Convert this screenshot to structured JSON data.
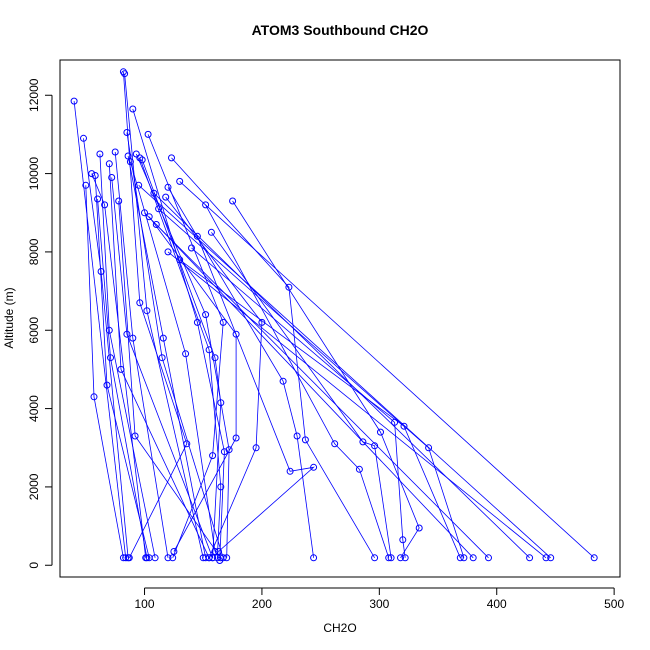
{
  "chart_data": {
    "type": "scatter",
    "title": "ATOM3 Southbound CH2O",
    "xlabel": "CH2O",
    "ylabel": "Altitude (m)",
    "xlim": [
      28,
      505
    ],
    "ylim": [
      -300,
      12900
    ],
    "xticks": [
      100,
      200,
      300,
      400,
      500
    ],
    "yticks": [
      0,
      2000,
      4000,
      6000,
      8000,
      10000,
      12000
    ],
    "grid": false,
    "color": "#0000ff",
    "profiles": [
      {
        "points": [
          {
            "x": 40,
            "y": 11850
          },
          {
            "x": 84,
            "y": 190
          }
        ]
      },
      {
        "points": [
          {
            "x": 48,
            "y": 10900
          },
          {
            "x": 63,
            "y": 7500
          },
          {
            "x": 86,
            "y": 190
          }
        ]
      },
      {
        "points": [
          {
            "x": 50,
            "y": 9700
          },
          {
            "x": 57,
            "y": 4300
          },
          {
            "x": 82,
            "y": 190
          }
        ]
      },
      {
        "points": [
          {
            "x": 55,
            "y": 10000
          },
          {
            "x": 66,
            "y": 9200
          },
          {
            "x": 101,
            "y": 190
          }
        ]
      },
      {
        "points": [
          {
            "x": 58,
            "y": 9950
          },
          {
            "x": 68,
            "y": 4600
          },
          {
            "x": 104,
            "y": 190
          }
        ]
      },
      {
        "points": [
          {
            "x": 60,
            "y": 9350
          },
          {
            "x": 71,
            "y": 5300
          },
          {
            "x": 102,
            "y": 190
          }
        ]
      },
      {
        "points": [
          {
            "x": 62,
            "y": 10500
          },
          {
            "x": 70,
            "y": 6000
          },
          {
            "x": 109,
            "y": 190
          }
        ]
      },
      {
        "points": [
          {
            "x": 70,
            "y": 10250
          },
          {
            "x": 80,
            "y": 5000
          },
          {
            "x": 155,
            "y": 190
          }
        ]
      },
      {
        "points": [
          {
            "x": 72,
            "y": 9900
          },
          {
            "x": 85,
            "y": 5900
          },
          {
            "x": 158,
            "y": 190
          }
        ]
      },
      {
        "points": [
          {
            "x": 75,
            "y": 10550
          },
          {
            "x": 90,
            "y": 5800
          },
          {
            "x": 120,
            "y": 190
          }
        ]
      },
      {
        "points": [
          {
            "x": 78,
            "y": 9300
          },
          {
            "x": 92,
            "y": 3300
          },
          {
            "x": 165,
            "y": 190
          }
        ]
      },
      {
        "points": [
          {
            "x": 82,
            "y": 12600
          },
          {
            "x": 96,
            "y": 6700
          },
          {
            "x": 136,
            "y": 3100
          },
          {
            "x": 87,
            "y": 190
          }
        ]
      },
      {
        "points": [
          {
            "x": 83,
            "y": 12550
          },
          {
            "x": 102,
            "y": 6500
          },
          {
            "x": 150,
            "y": 190
          }
        ]
      },
      {
        "points": [
          {
            "x": 85,
            "y": 11050
          },
          {
            "x": 115,
            "y": 5300
          },
          {
            "x": 167,
            "y": 190
          }
        ]
      },
      {
        "points": [
          {
            "x": 86,
            "y": 10450
          },
          {
            "x": 116,
            "y": 5800
          },
          {
            "x": 152,
            "y": 190
          }
        ]
      },
      {
        "points": [
          {
            "x": 88,
            "y": 10300
          },
          {
            "x": 135,
            "y": 5400
          },
          {
            "x": 160,
            "y": 350
          }
        ]
      },
      {
        "points": [
          {
            "x": 90,
            "y": 11650
          },
          {
            "x": 145,
            "y": 6200
          },
          {
            "x": 168,
            "y": 2900
          },
          {
            "x": 164,
            "y": 120
          }
        ]
      },
      {
        "points": [
          {
            "x": 93,
            "y": 10500
          },
          {
            "x": 152,
            "y": 6400
          },
          {
            "x": 172,
            "y": 2950
          },
          {
            "x": 170,
            "y": 190
          }
        ]
      },
      {
        "points": [
          {
            "x": 96,
            "y": 10400
          },
          {
            "x": 155,
            "y": 5500
          },
          {
            "x": 165,
            "y": 2000
          },
          {
            "x": 162,
            "y": 190
          }
        ]
      },
      {
        "points": [
          {
            "x": 98,
            "y": 10350
          },
          {
            "x": 160,
            "y": 5300
          },
          {
            "x": 165,
            "y": 4150
          },
          {
            "x": 158,
            "y": 190
          }
        ]
      },
      {
        "points": [
          {
            "x": 103,
            "y": 11000
          },
          {
            "x": 167,
            "y": 6200
          },
          {
            "x": 158,
            "y": 2800
          },
          {
            "x": 124,
            "y": 190
          }
        ]
      },
      {
        "points": [
          {
            "x": 104,
            "y": 8900
          },
          {
            "x": 178,
            "y": 5900
          },
          {
            "x": 178,
            "y": 3250
          },
          {
            "x": 125,
            "y": 350
          }
        ]
      },
      {
        "points": [
          {
            "x": 118,
            "y": 9400
          },
          {
            "x": 200,
            "y": 6200
          },
          {
            "x": 195,
            "y": 3000
          },
          {
            "x": 155,
            "y": 190
          }
        ]
      },
      {
        "points": [
          {
            "x": 120,
            "y": 9650
          },
          {
            "x": 218,
            "y": 4700
          },
          {
            "x": 230,
            "y": 3300
          },
          {
            "x": 244,
            "y": 190
          }
        ]
      },
      {
        "points": [
          {
            "x": 123,
            "y": 10400
          },
          {
            "x": 223,
            "y": 7100
          },
          {
            "x": 237,
            "y": 3200
          },
          {
            "x": 296,
            "y": 190
          }
        ]
      },
      {
        "points": [
          {
            "x": 145,
            "y": 8400
          },
          {
            "x": 224,
            "y": 2400
          },
          {
            "x": 244,
            "y": 2500
          },
          {
            "x": 163,
            "y": 350
          }
        ]
      },
      {
        "points": [
          {
            "x": 152,
            "y": 9200
          },
          {
            "x": 262,
            "y": 3100
          },
          {
            "x": 283,
            "y": 2450
          },
          {
            "x": 308,
            "y": 190
          }
        ]
      },
      {
        "points": [
          {
            "x": 157,
            "y": 8500
          },
          {
            "x": 286,
            "y": 3150
          },
          {
            "x": 296,
            "y": 3050
          },
          {
            "x": 310,
            "y": 190
          }
        ]
      },
      {
        "points": [
          {
            "x": 175,
            "y": 9300
          },
          {
            "x": 301,
            "y": 3400
          },
          {
            "x": 334,
            "y": 950
          },
          {
            "x": 318,
            "y": 190
          }
        ]
      },
      {
        "points": [
          {
            "x": 140,
            "y": 8100
          },
          {
            "x": 313,
            "y": 3650
          },
          {
            "x": 320,
            "y": 650
          },
          {
            "x": 322,
            "y": 190
          }
        ]
      },
      {
        "points": [
          {
            "x": 130,
            "y": 7800
          },
          {
            "x": 321,
            "y": 3550
          },
          {
            "x": 369,
            "y": 190
          }
        ]
      },
      {
        "points": [
          {
            "x": 112,
            "y": 9100
          },
          {
            "x": 342,
            "y": 3000
          },
          {
            "x": 372,
            "y": 190
          }
        ]
      },
      {
        "points": [
          {
            "x": 110,
            "y": 8700
          },
          {
            "x": 380,
            "y": 190
          }
        ]
      },
      {
        "points": [
          {
            "x": 100,
            "y": 9000
          },
          {
            "x": 393,
            "y": 190
          }
        ]
      },
      {
        "points": [
          {
            "x": 108,
            "y": 9500
          },
          {
            "x": 428,
            "y": 190
          }
        ]
      },
      {
        "points": [
          {
            "x": 120,
            "y": 8000
          },
          {
            "x": 442,
            "y": 190
          }
        ]
      },
      {
        "points": [
          {
            "x": 95,
            "y": 9700
          },
          {
            "x": 446,
            "y": 190
          }
        ]
      },
      {
        "points": [
          {
            "x": 130,
            "y": 9800
          },
          {
            "x": 483,
            "y": 190
          }
        ]
      }
    ]
  }
}
